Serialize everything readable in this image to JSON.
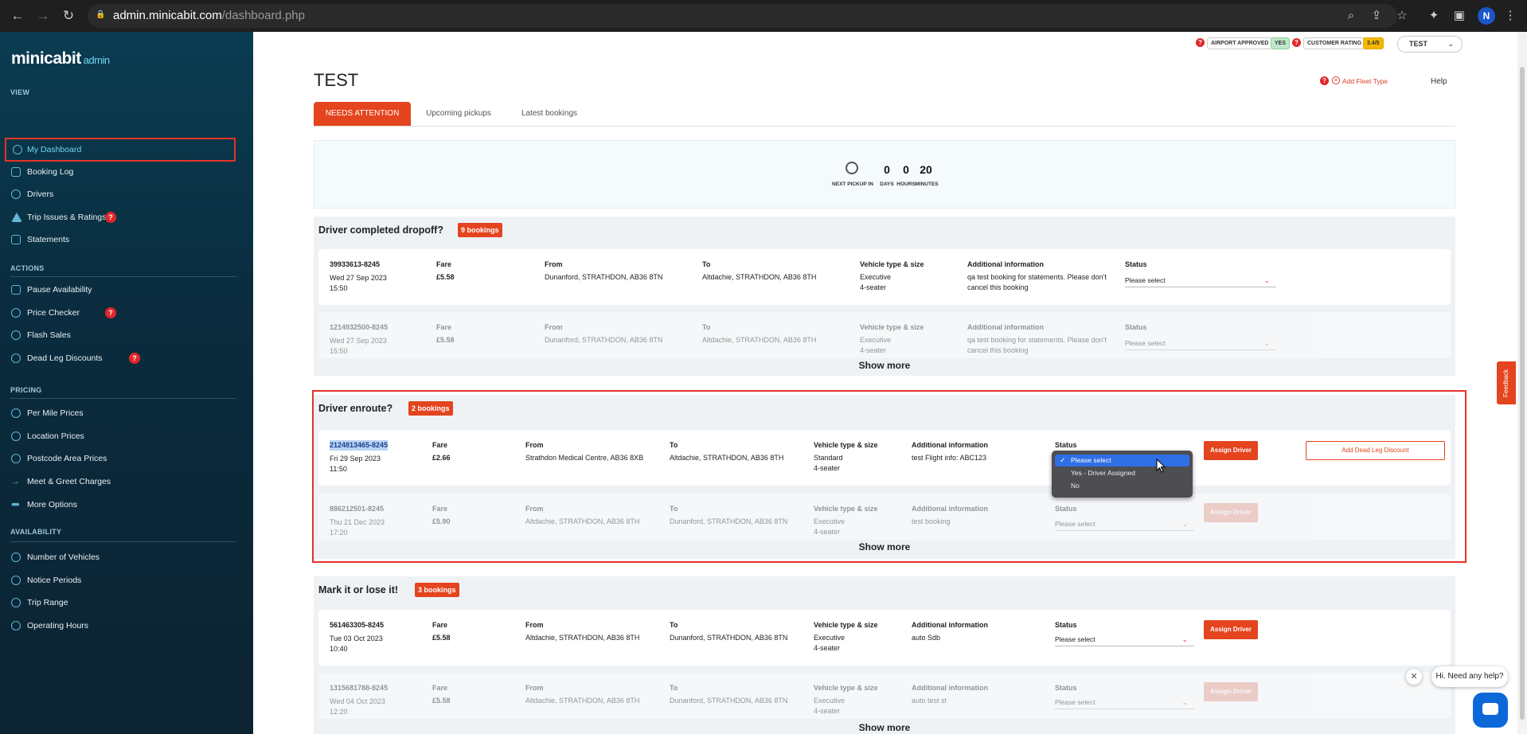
{
  "browser": {
    "url_host": "admin.minicabit.com",
    "url_path": "/dashboard.php",
    "avatar_letter": "N"
  },
  "sidebar": {
    "logo": "minicabit",
    "logo_suffix": "admin",
    "sections": {
      "view": "VIEW",
      "actions": "ACTIONS",
      "pricing": "PRICING",
      "availability": "AVAILABILITY"
    },
    "view_items": [
      "My Dashboard",
      "Booking Log",
      "Drivers",
      "Trip Issues & Ratings",
      "Statements"
    ],
    "action_items": [
      "Pause Availability",
      "Price Checker",
      "Flash Sales",
      "Dead Leg Discounts"
    ],
    "pricing_items": [
      "Per Mile Prices",
      "Location Prices",
      "Postcode Area Prices",
      "Meet & Greet Charges",
      "More Options"
    ],
    "availability_items": [
      "Number of Vehicles",
      "Notice Periods",
      "Trip Range",
      "Operating Hours"
    ],
    "badge": "?"
  },
  "topinfo": {
    "airport_label": "AIRPORT APPROVED",
    "airport_value": "YES",
    "rating_label": "CUSTOMER RATING",
    "rating_value": "3.4/5",
    "account": "TEST",
    "add_fleet": "Add Fleet Type",
    "help": "Help"
  },
  "page_title": "TEST",
  "tabs": [
    "NEEDS ATTENTION",
    "Upcoming pickups",
    "Latest bookings"
  ],
  "countdown": {
    "label": "NEXT PICKUP IN",
    "days": "0",
    "days_label": "DAYS",
    "hours": "0",
    "hours_label": "HOURS",
    "minutes": "20",
    "minutes_label": "MINUTES"
  },
  "labels": {
    "fare": "Fare",
    "from": "From",
    "to": "To",
    "vehicle": "Vehicle type & size",
    "info": "Additional information",
    "status": "Status",
    "assign": "Assign Driver",
    "dead_leg": "Add Dead Leg Discount",
    "please_select": "Please select",
    "show_more": "Show more"
  },
  "panels": [
    {
      "title": "Driver completed dropoff?",
      "badge": "9 bookings",
      "rows": [
        {
          "id": "39933613-8245",
          "date": "Wed 27 Sep 2023",
          "time": "15:50",
          "fare": "£5.58",
          "from": "Dunanford, STRATHDON, AB36 8TN",
          "to": "Altdachie, STRATHDON, AB36 8TH",
          "vtype": "Executive",
          "vsize": "4-seater",
          "info1": "qa test booking for statements. Please don't",
          "info2": "cancel this booking",
          "status": "Please select"
        },
        {
          "id": "1214932500-8245",
          "date": "Wed 27 Sep 2023",
          "time": "15:50",
          "fare": "£5.58",
          "from": "Dunanford, STRATHDON, AB36 8TN",
          "to": "Altdachie, STRATHDON, AB36 8TH",
          "vtype": "Executive",
          "vsize": "4-seater",
          "info1": "qa test booking for statements. Please don't",
          "info2": "cancel this booking",
          "status": "Please select"
        }
      ]
    },
    {
      "title": "Driver enroute?",
      "badge": "2 bookings",
      "rows": [
        {
          "id": "2124813465-8245",
          "date": "Fri 29 Sep 2023",
          "time": "11:50",
          "fare": "£2.66",
          "from": "Strathdon Medical Centre, AB36 8XB",
          "to": "Altdachie, STRATHDON, AB36 8TH",
          "vtype": "Standard",
          "vsize": "4-seater",
          "info1": "test Flight info: ABC123",
          "status": "Please select"
        },
        {
          "id": "886212501-8245",
          "date": "Thu 21 Dec 2023",
          "time": "17:20",
          "fare": "£5.90",
          "from": "Altdachie, STRATHDON, AB36 8TH",
          "to": "Dunanford, STRATHDON, AB36 8TN",
          "vtype": "Executive",
          "vsize": "4-seater",
          "info1": "test booking",
          "status": "Please select"
        }
      ]
    },
    {
      "title": "Mark it or lose it!",
      "badge": "3 bookings",
      "rows": [
        {
          "id": "561463305-8245",
          "date": "Tue 03 Oct 2023",
          "time": "10:40",
          "fare": "£5.58",
          "from": "Altdachie, STRATHDON, AB36 8TH",
          "to": "Dunanford, STRATHDON, AB36 8TN",
          "vtype": "Executive",
          "vsize": "4-seater",
          "info1": "auto Sdb",
          "status": "Please select"
        },
        {
          "id": "1315681788-8245",
          "date": "Wed 04 Oct 2023",
          "time": "12:20",
          "fare": "£5.58",
          "from": "Altdachie, STRATHDON, AB36 8TH",
          "to": "Dunanford, STRATHDON, AB36 8TN",
          "vtype": "Executive",
          "vsize": "4-seater",
          "info1": "auto test st",
          "status": "Please select"
        }
      ]
    }
  ],
  "dropdown_options": [
    "Please select",
    "Yes - Driver Assigned",
    "No"
  ],
  "feedback": "Feedback",
  "chat": {
    "bubble": "Hi. Need any help?",
    "close": "✕"
  }
}
